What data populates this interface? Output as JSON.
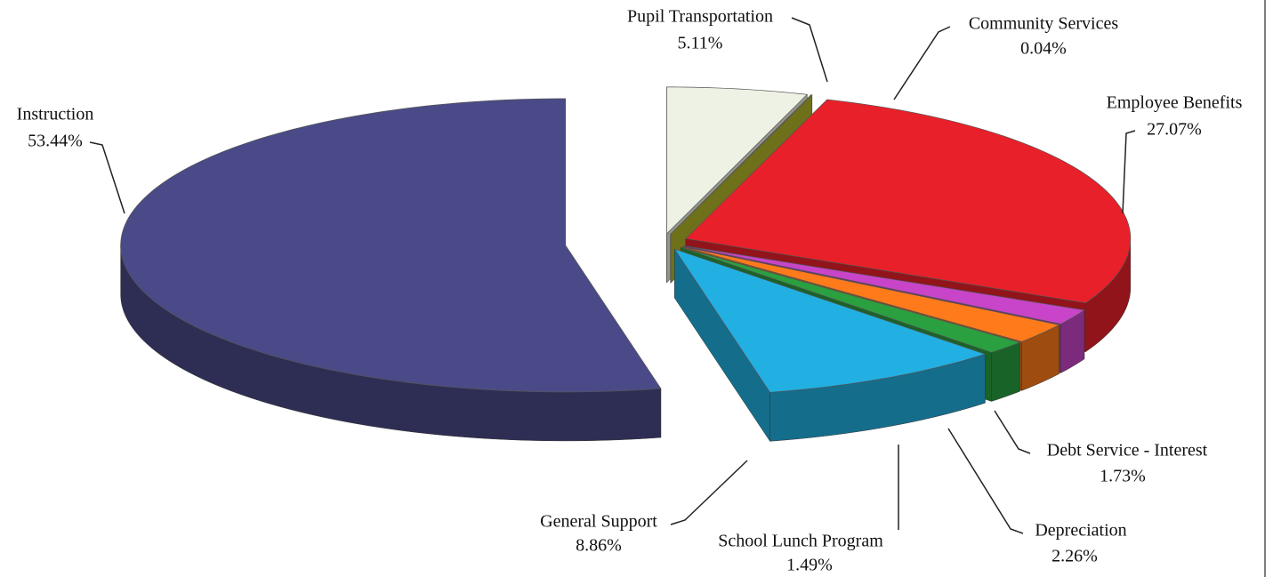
{
  "chart_data": {
    "type": "pie",
    "categories": [
      "Pupil Transportation",
      "Community Services",
      "Employee Benefits",
      "Debt Service - Interest",
      "Depreciation",
      "School Lunch Program",
      "General Support",
      "Instruction"
    ],
    "values": [
      5.11,
      0.04,
      27.07,
      1.73,
      2.26,
      1.49,
      8.86,
      53.44
    ],
    "value_labels": [
      "5.11%",
      "0.04%",
      "27.07%",
      "1.73%",
      "2.26%",
      "1.49%",
      "8.86%",
      "53.44%"
    ],
    "colors": [
      "#eef2e4",
      "#b3b62a",
      "#e8202a",
      "#c844c8",
      "#ff7a1a",
      "#2aa040",
      "#22b0e2",
      "#4a4a88"
    ]
  }
}
